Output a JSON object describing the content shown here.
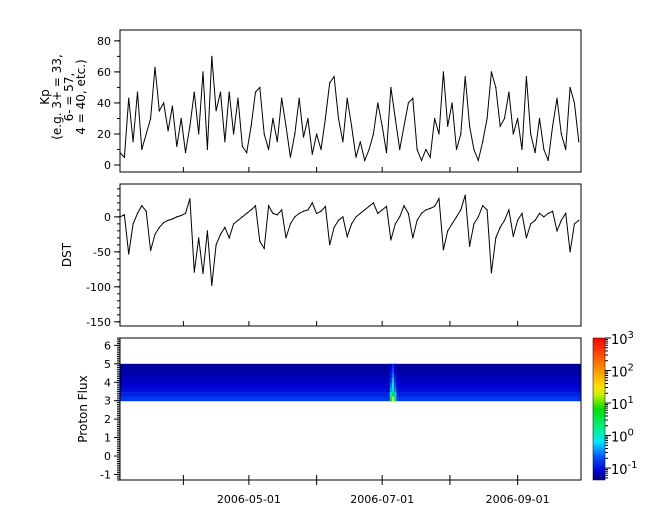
{
  "chart_data": [
    {
      "type": "line",
      "ylabel_lines": [
        "Kp",
        "(e.g. 3+ = 33,",
        "6- = 57,",
        "4 = 40, etc.)"
      ],
      "ylim": [
        -4.5,
        87
      ],
      "yticks": [
        0,
        20,
        40,
        60,
        80
      ],
      "yminor_step": 10,
      "grid": false,
      "series": [
        {
          "values": [
            8,
            5,
            43,
            15,
            47,
            10,
            20,
            30,
            63,
            35,
            40,
            22,
            38,
            12,
            30,
            8,
            25,
            47,
            20,
            60,
            10,
            70,
            35,
            47,
            15,
            47,
            20,
            43,
            12,
            8,
            25,
            47,
            50,
            20,
            10,
            30,
            15,
            43,
            25,
            5,
            20,
            43,
            18,
            30,
            7,
            20,
            10,
            30,
            53,
            57,
            30,
            15,
            43,
            25,
            5,
            15,
            3,
            10,
            20,
            40,
            25,
            8,
            50,
            30,
            10,
            25,
            40,
            43,
            10,
            3,
            10,
            5,
            30,
            20,
            60,
            25,
            40,
            10,
            20,
            57,
            25,
            10,
            3,
            15,
            30,
            60,
            50,
            25,
            30,
            47,
            20,
            30,
            10,
            57,
            20,
            8,
            30,
            10,
            3,
            25,
            43,
            20,
            10,
            50,
            40,
            15
          ]
        }
      ]
    },
    {
      "type": "line",
      "ylabel": "DST",
      "ylim": [
        -156,
        47
      ],
      "yticks": [
        0,
        -50,
        -100,
        -150
      ],
      "yminor_step": 10,
      "grid": false,
      "series": [
        {
          "values": [
            0,
            3,
            -53,
            -10,
            5,
            16,
            8,
            -48,
            -25,
            -15,
            -8,
            -5,
            -3,
            0,
            2,
            5,
            26,
            -79,
            -30,
            -81,
            -20,
            -98,
            -40,
            -25,
            -15,
            -30,
            -10,
            -5,
            0,
            5,
            10,
            16,
            -35,
            -45,
            16,
            5,
            3,
            10,
            -30,
            -10,
            0,
            5,
            8,
            10,
            20,
            5,
            8,
            15,
            -40,
            -15,
            -5,
            0,
            -28,
            -10,
            0,
            5,
            10,
            15,
            20,
            5,
            10,
            15,
            -33,
            -10,
            0,
            16,
            5,
            -30,
            -5,
            5,
            10,
            12,
            15,
            26,
            -47,
            -20,
            -10,
            0,
            10,
            31,
            -42,
            -10,
            0,
            16,
            10,
            -80,
            -30,
            -15,
            -5,
            10,
            -28,
            -5,
            5,
            -30,
            -10,
            -5,
            5,
            0,
            5,
            8,
            -20,
            -5,
            5,
            -50,
            -10,
            -5
          ]
        }
      ]
    },
    {
      "type": "heatmap",
      "ylabel": "Proton Flux",
      "ylim": [
        -1.3,
        6.4
      ],
      "yticks": [
        -1,
        0,
        1,
        2,
        3,
        4,
        5,
        6
      ],
      "yminor_step": 0.1,
      "y_bins": [
        3.0,
        3.25,
        3.5,
        3.75,
        4.0,
        4.25,
        4.5,
        4.75,
        5.0
      ],
      "baseline_profile": [
        0.16,
        0.12,
        0.09,
        0.08,
        0.07,
        0.065,
        0.06,
        0.055
      ],
      "events": [
        {
          "date": "2006-07-05",
          "values": [
            3,
            0.8,
            0.4,
            0.25,
            0.15,
            0.12,
            0.1,
            0.08
          ]
        },
        {
          "date": "2006-07-06",
          "values": [
            30,
            5,
            2,
            1,
            0.5,
            0.3,
            0.2,
            0.15
          ]
        },
        {
          "date": "2006-07-07",
          "values": [
            2,
            0.6,
            0.3,
            0.2,
            0.12,
            0.1,
            0.08,
            0.07
          ]
        }
      ],
      "colorbar": {
        "scale": "log",
        "range": [
          0.043,
          1000
        ],
        "tick_labels": [
          {
            "base": "10",
            "exp": "3"
          },
          {
            "base": "10",
            "exp": "2"
          },
          {
            "base": "10",
            "exp": "1"
          },
          {
            "base": "10",
            "exp": "0"
          },
          {
            "base": "10",
            "exp": "-1"
          }
        ],
        "tick_values": [
          1000,
          100,
          10,
          1,
          0.1
        ],
        "colormap": "jet"
      }
    }
  ],
  "x": [
    "2006-03-03",
    "2006-03-05",
    "2006-03-07",
    "2006-03-09",
    "2006-03-11",
    "2006-03-13",
    "2006-03-15",
    "2006-03-17",
    "2006-03-19",
    "2006-03-21",
    "2006-03-23",
    "2006-03-25",
    "2006-03-27",
    "2006-03-29",
    "2006-03-31",
    "2006-04-02",
    "2006-04-04",
    "2006-04-06",
    "2006-04-08",
    "2006-04-10",
    "2006-04-12",
    "2006-04-14",
    "2006-04-16",
    "2006-04-18",
    "2006-04-20",
    "2006-04-22",
    "2006-04-24",
    "2006-04-26",
    "2006-04-28",
    "2006-04-30",
    "2006-05-02",
    "2006-05-04",
    "2006-05-06",
    "2006-05-08",
    "2006-05-10",
    "2006-05-12",
    "2006-05-14",
    "2006-05-16",
    "2006-05-18",
    "2006-05-20",
    "2006-05-22",
    "2006-05-24",
    "2006-05-26",
    "2006-05-28",
    "2006-05-30",
    "2006-06-01",
    "2006-06-03",
    "2006-06-05",
    "2006-06-07",
    "2006-06-09",
    "2006-06-11",
    "2006-06-13",
    "2006-06-15",
    "2006-06-17",
    "2006-06-19",
    "2006-06-21",
    "2006-06-23",
    "2006-06-25",
    "2006-06-27",
    "2006-06-29",
    "2006-07-01",
    "2006-07-03",
    "2006-07-05",
    "2006-07-07",
    "2006-07-09",
    "2006-07-11",
    "2006-07-13",
    "2006-07-15",
    "2006-07-17",
    "2006-07-19",
    "2006-07-21",
    "2006-07-23",
    "2006-07-25",
    "2006-07-27",
    "2006-07-29",
    "2006-07-31",
    "2006-08-02",
    "2006-08-04",
    "2006-08-06",
    "2006-08-08",
    "2006-08-10",
    "2006-08-12",
    "2006-08-14",
    "2006-08-16",
    "2006-08-18",
    "2006-08-20",
    "2006-08-22",
    "2006-08-24",
    "2006-08-26",
    "2006-08-28",
    "2006-08-30",
    "2006-09-01",
    "2006-09-03",
    "2006-09-05",
    "2006-09-07",
    "2006-09-09",
    "2006-09-11",
    "2006-09-13",
    "2006-09-15",
    "2006-09-17",
    "2006-09-19",
    "2006-09-21",
    "2006-09-23",
    "2006-09-25",
    "2006-09-27",
    "2006-09-29"
  ],
  "xlim": [
    "2006-03-03",
    "2006-09-30"
  ],
  "x_major_ticks": [
    "2006-05-01",
    "2006-07-01",
    "2006-09-01"
  ],
  "x_minor_ticks": [
    "2006-04-01",
    "2006-06-01",
    "2006-08-01"
  ],
  "x_tick_labels": [
    "2006-05-01",
    "2006-07-01",
    "2006-09-01"
  ],
  "line_color": "#000000"
}
